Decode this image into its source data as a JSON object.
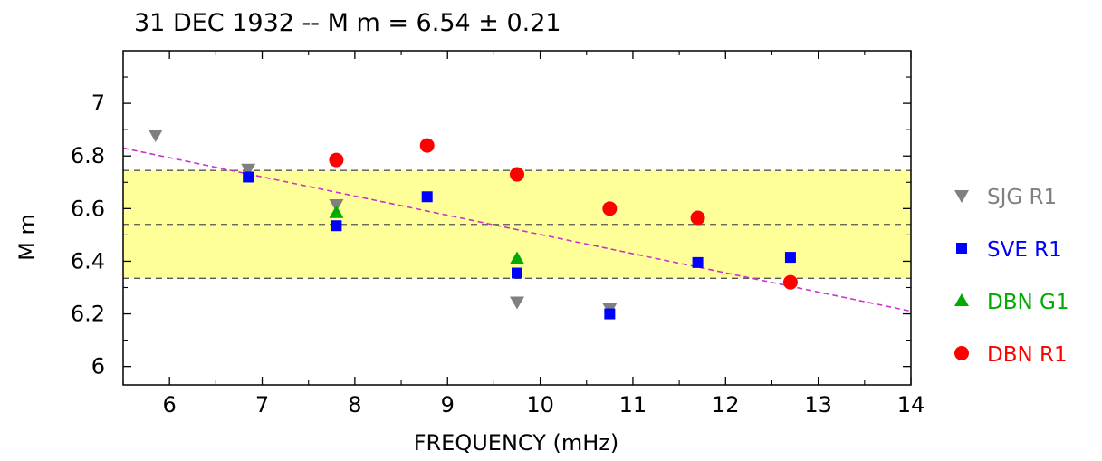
{
  "chart_data": {
    "type": "scatter",
    "title": "31 DEC 1932 -- M m =  6.54 ±  0.21",
    "xlabel": "FREQUENCY (mHz)",
    "ylabel": "M m",
    "xlim": [
      5.5,
      14
    ],
    "ylim": [
      5.93,
      7.2
    ],
    "xticks": [
      "6",
      "7",
      "8",
      "9",
      "10",
      "11",
      "12",
      "13",
      "14"
    ],
    "yticks": [
      "6",
      "6.2",
      "6.4",
      "6.6",
      "6.8",
      "7"
    ],
    "grid": false,
    "legend_position": "right",
    "mean": 6.54,
    "uncertainty": 0.21,
    "band": [
      6.335,
      6.745
    ],
    "band_color": "#ffff99",
    "trend_line": {
      "points": [
        [
          5.5,
          6.83
        ],
        [
          14.0,
          6.21
        ]
      ],
      "color": "#cc33cc"
    },
    "series": [
      {
        "name": "SJG R1",
        "marker": "triangle-down",
        "color": "#808080",
        "points": [
          [
            5.85,
            6.88
          ],
          [
            6.85,
            6.75
          ],
          [
            7.8,
            6.615
          ],
          [
            9.75,
            6.245
          ],
          [
            10.75,
            6.22
          ]
        ]
      },
      {
        "name": "SVE R1",
        "marker": "square",
        "color": "#0000ff",
        "points": [
          [
            6.85,
            6.72
          ],
          [
            7.8,
            6.535
          ],
          [
            8.78,
            6.645
          ],
          [
            9.75,
            6.355
          ],
          [
            10.75,
            6.2
          ],
          [
            11.7,
            6.395
          ],
          [
            12.7,
            6.415
          ]
        ]
      },
      {
        "name": "DBN G1",
        "marker": "triangle-up",
        "color": "#00aa00",
        "points": [
          [
            7.8,
            6.585
          ],
          [
            9.75,
            6.41
          ]
        ]
      },
      {
        "name": "DBN R1",
        "marker": "circle",
        "color": "#ff0000",
        "points": [
          [
            7.8,
            6.785
          ],
          [
            8.78,
            6.84
          ],
          [
            9.75,
            6.73
          ],
          [
            10.75,
            6.6
          ],
          [
            11.7,
            6.565
          ],
          [
            12.7,
            6.32
          ]
        ]
      }
    ]
  }
}
